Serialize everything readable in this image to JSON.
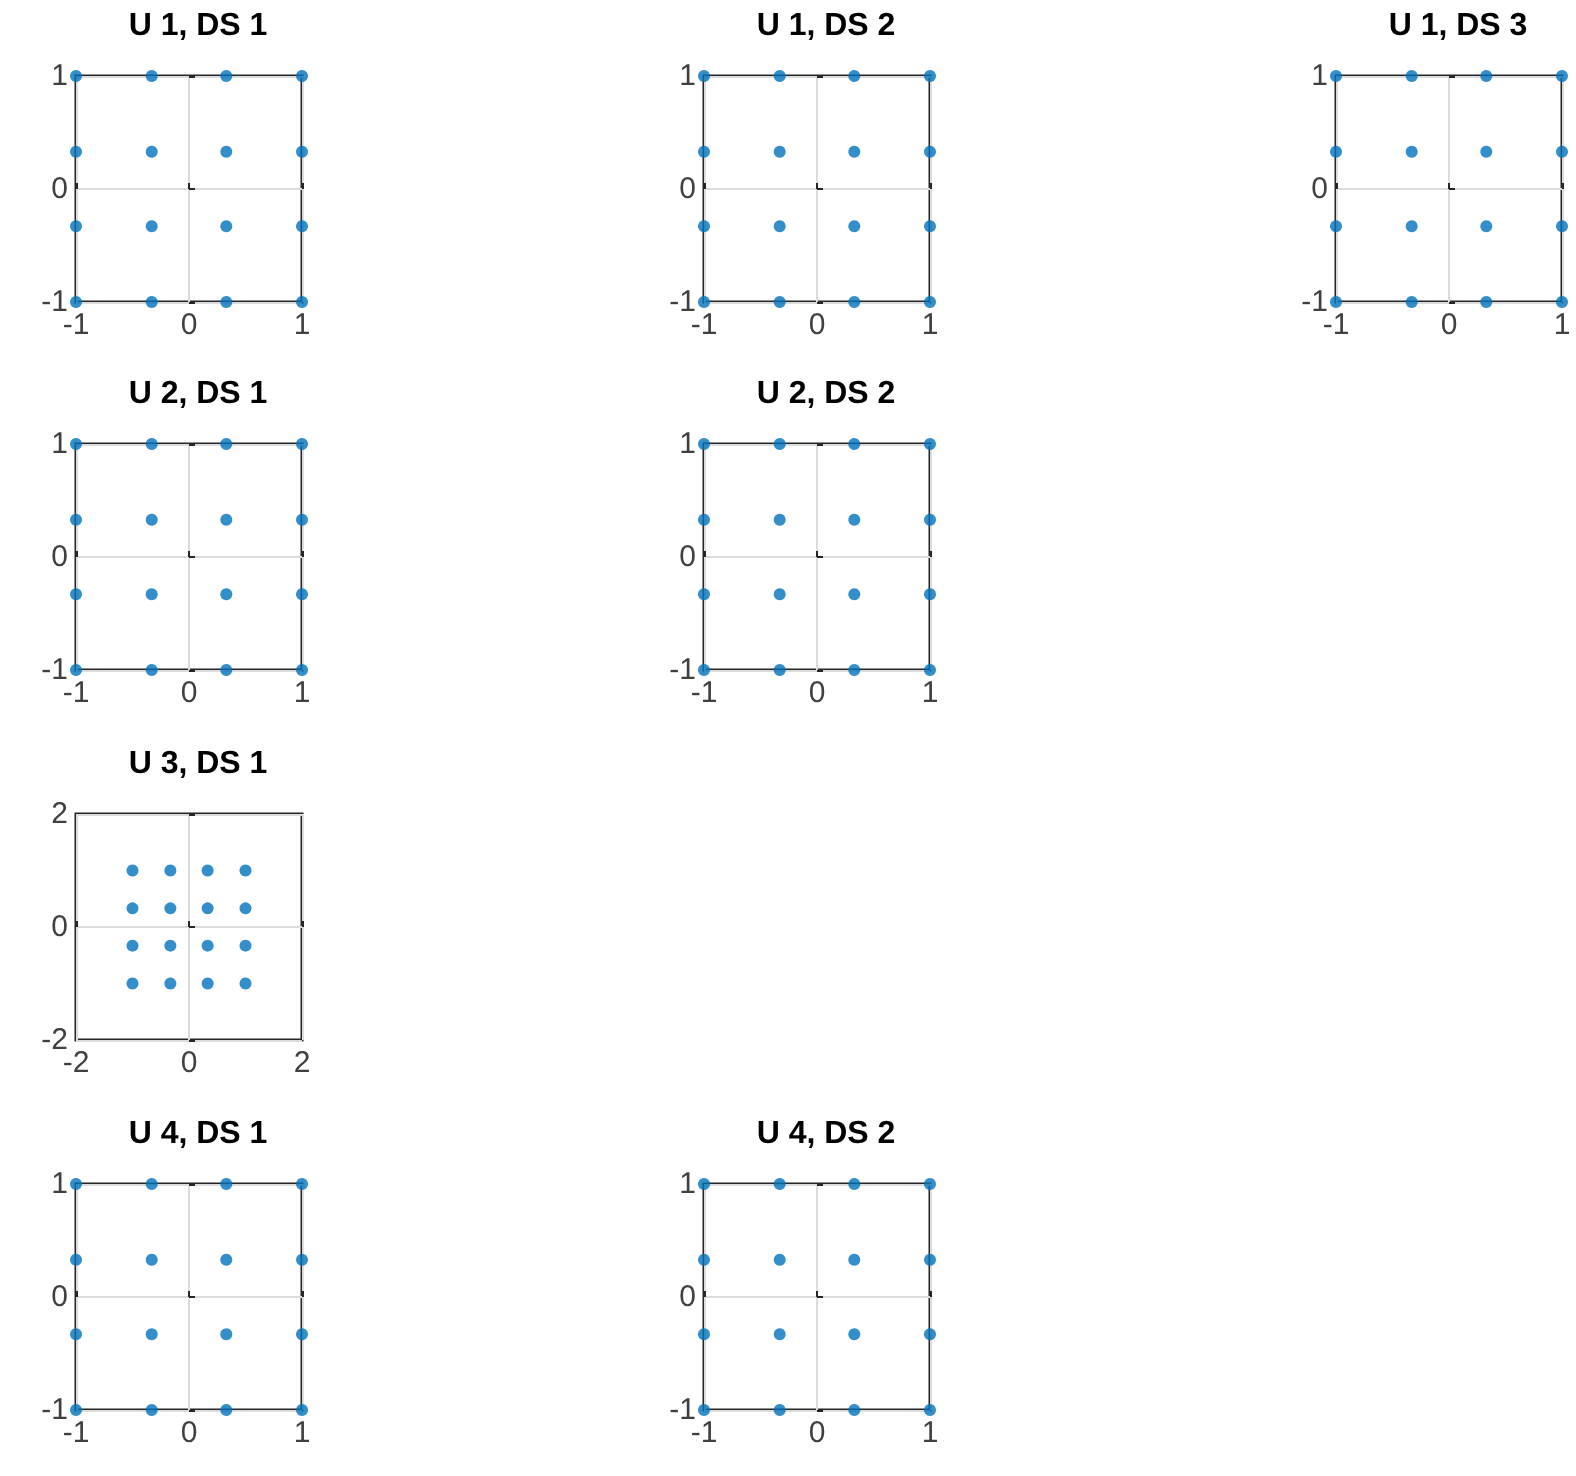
{
  "chart_data": [
    {
      "type": "scatter",
      "title": "U 1, DS 1",
      "x": [
        -1,
        -1,
        -1,
        -1,
        -0.33,
        -0.33,
        -0.33,
        -0.33,
        0.33,
        0.33,
        0.33,
        0.33,
        1,
        1,
        1,
        1
      ],
      "values": [
        -1,
        -0.33,
        0.33,
        1,
        -1,
        -0.33,
        0.33,
        1,
        -1,
        -0.33,
        0.33,
        1,
        -1,
        -0.33,
        0.33,
        1
      ],
      "color": "#0072bd",
      "marker": "circle",
      "xlim": [
        -1,
        1
      ],
      "ylim": [
        -1,
        1
      ],
      "xticks": [
        -1,
        0,
        1
      ],
      "yticks": [
        -1,
        0,
        1
      ],
      "grid": true
    },
    {
      "type": "scatter",
      "title": "U 1, DS 2",
      "x": [
        -1,
        -1,
        -1,
        -1,
        -0.33,
        -0.33,
        -0.33,
        -0.33,
        0.33,
        0.33,
        0.33,
        0.33,
        1,
        1,
        1,
        1
      ],
      "values": [
        -1,
        -0.33,
        0.33,
        1,
        -1,
        -0.33,
        0.33,
        1,
        -1,
        -0.33,
        0.33,
        1,
        -1,
        -0.33,
        0.33,
        1
      ],
      "color": "#0072bd",
      "marker": "circle",
      "xlim": [
        -1,
        1
      ],
      "ylim": [
        -1,
        1
      ],
      "xticks": [
        -1,
        0,
        1
      ],
      "yticks": [
        -1,
        0,
        1
      ],
      "grid": true
    },
    {
      "type": "scatter",
      "title": "U 1, DS 3",
      "x": [
        -1,
        -1,
        -1,
        -1,
        -0.33,
        -0.33,
        -0.33,
        -0.33,
        0.33,
        0.33,
        0.33,
        0.33,
        1,
        1,
        1,
        1
      ],
      "values": [
        -1,
        -0.33,
        0.33,
        1,
        -1,
        -0.33,
        0.33,
        1,
        -1,
        -0.33,
        0.33,
        1,
        -1,
        -0.33,
        0.33,
        1
      ],
      "color": "#0072bd",
      "marker": "circle",
      "xlim": [
        -1,
        1
      ],
      "ylim": [
        -1,
        1
      ],
      "xticks": [
        -1,
        0,
        1
      ],
      "yticks": [
        -1,
        0,
        1
      ],
      "grid": true
    },
    {
      "type": "scatter",
      "title": "U 2, DS 1",
      "x": [
        -1,
        -1,
        -1,
        -1,
        -0.33,
        -0.33,
        -0.33,
        -0.33,
        0.33,
        0.33,
        0.33,
        0.33,
        1,
        1,
        1,
        1
      ],
      "values": [
        -1,
        -0.33,
        0.33,
        1,
        -1,
        -0.33,
        0.33,
        1,
        -1,
        -0.33,
        0.33,
        1,
        -1,
        -0.33,
        0.33,
        1
      ],
      "color": "#0072bd",
      "marker": "circle",
      "xlim": [
        -1,
        1
      ],
      "ylim": [
        -1,
        1
      ],
      "xticks": [
        -1,
        0,
        1
      ],
      "yticks": [
        -1,
        0,
        1
      ],
      "grid": true
    },
    {
      "type": "scatter",
      "title": "U 2, DS 2",
      "x": [
        -1,
        -1,
        -1,
        -1,
        -0.33,
        -0.33,
        -0.33,
        -0.33,
        0.33,
        0.33,
        0.33,
        0.33,
        1,
        1,
        1,
        1
      ],
      "values": [
        -1,
        -0.33,
        0.33,
        1,
        -1,
        -0.33,
        0.33,
        1,
        -1,
        -0.33,
        0.33,
        1,
        -1,
        -0.33,
        0.33,
        1
      ],
      "color": "#0072bd",
      "marker": "circle",
      "xlim": [
        -1,
        1
      ],
      "ylim": [
        -1,
        1
      ],
      "xticks": [
        -1,
        0,
        1
      ],
      "yticks": [
        -1,
        0,
        1
      ],
      "grid": true
    },
    {
      "type": "scatter",
      "title": "U 3, DS 1",
      "x": [
        -1,
        -1,
        -1,
        -1,
        -0.33,
        -0.33,
        -0.33,
        -0.33,
        0.33,
        0.33,
        0.33,
        0.33,
        1,
        1,
        1,
        1
      ],
      "values": [
        -1,
        -0.33,
        0.33,
        1,
        -1,
        -0.33,
        0.33,
        1,
        -1,
        -0.33,
        0.33,
        1,
        -1,
        -0.33,
        0.33,
        1
      ],
      "color": "#0072bd",
      "marker": "circle",
      "xlim": [
        -2,
        2
      ],
      "ylim": [
        -2,
        2
      ],
      "xticks": [
        -2,
        0,
        2
      ],
      "yticks": [
        -2,
        0,
        2
      ],
      "grid": true
    },
    {
      "type": "scatter",
      "title": "U 4, DS 1",
      "x": [
        -1,
        -1,
        -1,
        -1,
        -0.33,
        -0.33,
        -0.33,
        -0.33,
        0.33,
        0.33,
        0.33,
        0.33,
        1,
        1,
        1,
        1
      ],
      "values": [
        -1,
        -0.33,
        0.33,
        1,
        -1,
        -0.33,
        0.33,
        1,
        -1,
        -0.33,
        0.33,
        1,
        -1,
        -0.33,
        0.33,
        1
      ],
      "color": "#0072bd",
      "marker": "circle",
      "xlim": [
        -1,
        1
      ],
      "ylim": [
        -1,
        1
      ],
      "xticks": [
        -1,
        0,
        1
      ],
      "yticks": [
        -1,
        0,
        1
      ],
      "grid": true
    },
    {
      "type": "scatter",
      "title": "U 4, DS 2",
      "x": [
        -1,
        -1,
        -1,
        -1,
        -0.33,
        -0.33,
        -0.33,
        -0.33,
        0.33,
        0.33,
        0.33,
        0.33,
        1,
        1,
        1,
        1
      ],
      "values": [
        -1,
        -0.33,
        0.33,
        1,
        -1,
        -0.33,
        0.33,
        1,
        -1,
        -0.33,
        0.33,
        1,
        -1,
        -0.33,
        0.33,
        1
      ],
      "color": "#0072bd",
      "marker": "circle",
      "xlim": [
        -1,
        1
      ],
      "ylim": [
        -1,
        1
      ],
      "xticks": [
        -1,
        0,
        1
      ],
      "yticks": [
        -1,
        0,
        1
      ],
      "grid": true
    }
  ]
}
